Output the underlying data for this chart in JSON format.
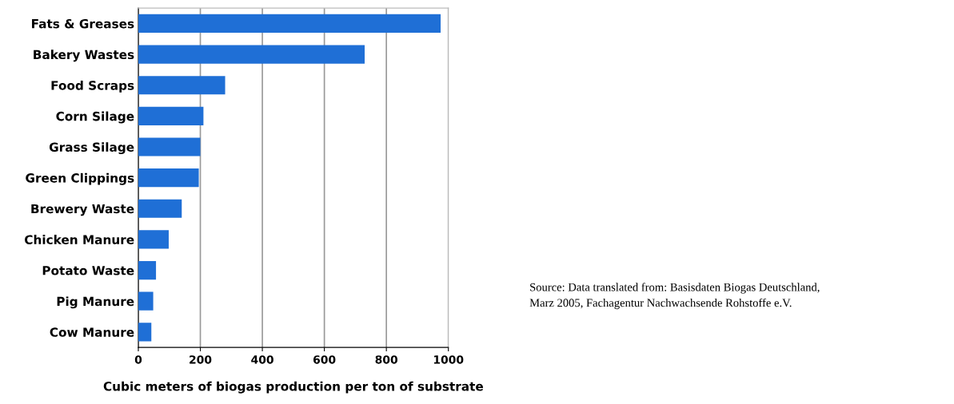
{
  "chart_data": {
    "type": "bar",
    "orientation": "horizontal",
    "categories": [
      "Fats & Greases",
      "Bakery Wastes",
      "Food Scraps",
      "Corn Silage",
      "Grass Silage",
      "Green Clippings",
      "Brewery Waste",
      "Chicken Manure",
      "Potato Waste",
      "Pig Manure",
      "Cow Manure"
    ],
    "values": [
      975,
      730,
      280,
      210,
      200,
      195,
      140,
      98,
      57,
      48,
      42
    ],
    "color": "#1f6fd6",
    "xlim": [
      0,
      1000
    ],
    "xticks": [
      0,
      200,
      400,
      600,
      800,
      1000
    ],
    "xlabel": "Cubic meters of biogas production per ton of substrate",
    "grid": "x",
    "annotations": [
      "Source: Data translated from: Basisdaten Biogas Deutschland,\nMarz 2005, Fachagentur Nachwachsende Rohstoffe e.V."
    ]
  }
}
